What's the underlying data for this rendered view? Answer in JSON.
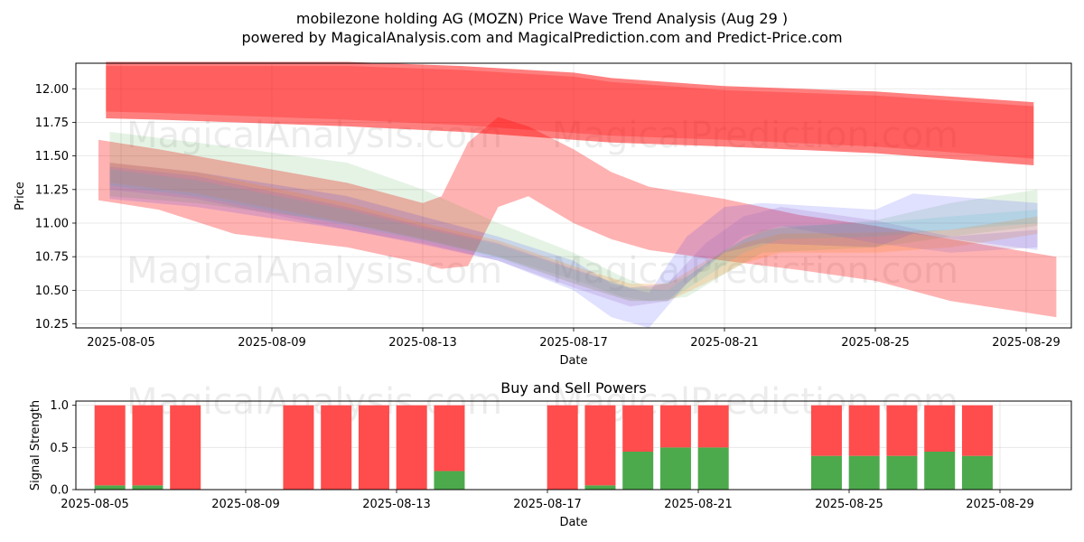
{
  "chart_data": [
    {
      "type": "area",
      "title": "mobilezone holding AG (MOZN) Price Wave Trend Analysis (Aug 29 )",
      "subtitle": "powered by MagicalAnalysis.com and MagicalPrediction.com and Predict-Price.com",
      "xlabel": "Date",
      "ylabel": "Price",
      "ylim": [
        10.22,
        12.19
      ],
      "x_tick_labels": [
        "2025-08-05",
        "2025-08-09",
        "2025-08-13",
        "2025-08-17",
        "2025-08-21",
        "2025-08-25",
        "2025-08-29"
      ],
      "y_tick_labels": [
        "10.25",
        "10.50",
        "10.75",
        "11.00",
        "11.25",
        "11.50",
        "11.75",
        "12.00"
      ],
      "watermarks": [
        "MagicalAnalysis.com",
        "MagicalPrediction.com"
      ],
      "grid": true,
      "series": [
        {
          "name": "red-upper-band",
          "color": "#ff0000",
          "x": [
            4.6,
            6,
            8,
            11,
            14,
            17,
            18,
            21,
            25,
            29.2
          ],
          "upper": [
            12.2,
            12.2,
            12.2,
            12.2,
            12.17,
            12.12,
            12.08,
            12.02,
            11.98,
            11.9
          ],
          "lower": [
            11.78,
            11.77,
            11.75,
            11.72,
            11.68,
            11.62,
            11.6,
            11.57,
            11.52,
            11.43
          ]
        },
        {
          "name": "red-lower-band",
          "color": "#ff0000",
          "x": [
            4.4,
            6,
            8,
            11,
            13,
            13.5,
            14.2,
            15,
            15.8,
            17,
            18,
            19,
            21,
            23,
            25,
            27,
            29.8
          ],
          "upper": [
            11.62,
            11.55,
            11.45,
            11.3,
            11.15,
            11.2,
            11.6,
            11.79,
            11.72,
            11.55,
            11.38,
            11.27,
            11.18,
            11.06,
            10.98,
            10.88,
            10.75
          ],
          "lower": [
            11.17,
            11.1,
            10.92,
            10.82,
            10.7,
            10.66,
            10.68,
            11.12,
            11.2,
            11.0,
            10.88,
            10.8,
            10.72,
            10.65,
            10.57,
            10.42,
            10.3
          ]
        },
        {
          "name": "green-band",
          "color": "#2ca02c",
          "x": [
            4.7,
            7,
            11,
            13,
            15,
            17,
            18.3,
            19,
            20,
            21,
            22,
            25,
            27,
            29.3
          ],
          "upper": [
            11.68,
            11.6,
            11.45,
            11.25,
            11.0,
            10.78,
            10.6,
            10.52,
            10.6,
            10.8,
            10.95,
            11.02,
            11.15,
            11.25
          ],
          "lower": [
            11.2,
            11.15,
            11.0,
            10.88,
            10.75,
            10.58,
            10.45,
            10.42,
            10.45,
            10.62,
            10.78,
            10.82,
            10.9,
            10.98
          ]
        },
        {
          "name": "blue-band",
          "color": "#0000ff",
          "x": [
            4.7,
            7,
            11,
            13,
            15,
            17,
            18,
            19,
            20,
            21,
            22,
            25,
            26,
            29.3
          ],
          "upper": [
            11.45,
            11.38,
            11.2,
            11.05,
            10.9,
            10.72,
            10.55,
            10.48,
            10.9,
            11.12,
            11.15,
            11.1,
            11.22,
            11.15
          ],
          "lower": [
            11.18,
            11.12,
            10.95,
            10.84,
            10.72,
            10.5,
            10.3,
            10.22,
            10.55,
            10.78,
            10.85,
            10.82,
            10.92,
            10.8
          ]
        },
        {
          "name": "orange-band",
          "color": "#ff7f0e",
          "x": [
            4.7,
            7,
            11,
            13,
            15,
            17,
            18.5,
            19.5,
            20.5,
            21.5,
            22.5,
            25,
            27,
            29.3
          ],
          "upper": [
            11.45,
            11.38,
            11.15,
            11.0,
            10.87,
            10.68,
            10.55,
            10.55,
            10.72,
            10.85,
            10.92,
            10.93,
            10.95,
            11.05
          ],
          "lower": [
            11.3,
            11.22,
            11.0,
            10.88,
            10.75,
            10.55,
            10.42,
            10.42,
            10.55,
            10.7,
            10.78,
            10.78,
            10.82,
            10.92
          ]
        },
        {
          "name": "purple-band",
          "color": "#9467bd",
          "x": [
            4.7,
            7,
            11,
            13,
            15,
            17,
            18.5,
            19.5,
            20.5,
            21.5,
            22.5,
            25,
            27,
            29.3
          ],
          "upper": [
            11.42,
            11.35,
            11.12,
            10.98,
            10.85,
            10.66,
            10.52,
            10.55,
            10.85,
            11.05,
            11.12,
            11.02,
            10.9,
            10.95
          ],
          "lower": [
            11.25,
            11.18,
            10.95,
            10.85,
            10.72,
            10.52,
            10.38,
            10.42,
            10.68,
            10.9,
            10.98,
            10.85,
            10.78,
            10.82
          ]
        },
        {
          "name": "teal-band",
          "color": "#17becf",
          "x": [
            4.7,
            7,
            11,
            13,
            15,
            17,
            18.5,
            19.5,
            20.5,
            21.5,
            22.5,
            25,
            27,
            29.3
          ],
          "upper": [
            11.4,
            11.32,
            11.1,
            10.96,
            10.84,
            10.65,
            10.52,
            10.5,
            10.7,
            10.88,
            10.98,
            11.0,
            11.05,
            11.1
          ],
          "lower": [
            11.28,
            11.2,
            10.98,
            10.87,
            10.74,
            10.55,
            10.42,
            10.42,
            10.6,
            10.78,
            10.88,
            10.9,
            10.95,
            11.0
          ]
        }
      ]
    },
    {
      "type": "bar",
      "title": "Buy and Sell Powers",
      "xlabel": "Date",
      "ylabel": "Signal Strength",
      "ylim": [
        0,
        1.05
      ],
      "x_tick_labels": [
        "2025-08-05",
        "2025-08-09",
        "2025-08-13",
        "2025-08-17",
        "2025-08-21",
        "2025-08-25",
        "2025-08-29"
      ],
      "y_tick_labels": [
        "0.0",
        "0.5",
        "1.0"
      ],
      "watermarks": [
        "MagicalAnalysis.com",
        "MagicalPrediction.com"
      ],
      "grid": true,
      "categories": [
        "2025-08-05",
        "2025-08-06",
        "2025-08-07",
        "2025-08-10",
        "2025-08-11",
        "2025-08-12",
        "2025-08-13",
        "2025-08-14",
        "2025-08-17",
        "2025-08-18",
        "2025-08-19",
        "2025-08-20",
        "2025-08-21",
        "2025-08-24",
        "2025-08-25",
        "2025-08-26",
        "2025-08-27",
        "2025-08-28"
      ],
      "x": [
        5.4,
        6.4,
        7.4,
        10.4,
        11.4,
        12.4,
        13.4,
        14.4,
        17.4,
        18.4,
        19.4,
        20.4,
        21.4,
        24.4,
        25.4,
        26.4,
        27.4,
        28.4
      ],
      "series": [
        {
          "name": "Buy",
          "color": "#4caa4c",
          "values": [
            0.05,
            0.05,
            0.0,
            0.0,
            0.0,
            0.0,
            0.0,
            0.22,
            0.0,
            0.05,
            0.45,
            0.5,
            0.5,
            0.4,
            0.4,
            0.4,
            0.45,
            0.4
          ]
        },
        {
          "name": "Sell",
          "color": "#ff4c4c",
          "values": [
            0.95,
            0.95,
            1.0,
            1.0,
            1.0,
            1.0,
            1.0,
            0.78,
            1.0,
            0.95,
            0.55,
            0.5,
            0.5,
            0.6,
            0.6,
            0.6,
            0.55,
            0.6
          ]
        }
      ]
    }
  ]
}
